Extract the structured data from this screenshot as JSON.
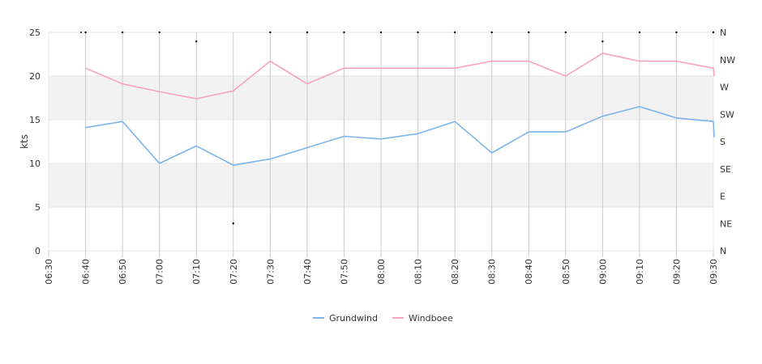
{
  "chart_data": {
    "type": "line",
    "title": "",
    "ylabel": "kts",
    "xlabel": "",
    "ylim": [
      0,
      25
    ],
    "y_ticks": [
      0,
      5,
      10,
      15,
      20,
      25
    ],
    "x_tick_labels": [
      "06:30",
      "06:40",
      "06:50",
      "07:00",
      "07:10",
      "07:20",
      "07:30",
      "07:40",
      "07:50",
      "08:00",
      "08:10",
      "08:20",
      "08:30",
      "08:40",
      "08:50",
      "09:00",
      "09:10",
      "09:20",
      "09:30"
    ],
    "right_axis_labels": [
      "N",
      "NE",
      "E",
      "SE",
      "S",
      "SW",
      "W",
      "NW",
      "N"
    ],
    "x": [
      "06:40",
      "06:50",
      "07:00",
      "07:10",
      "07:20",
      "07:30",
      "07:40",
      "07:50",
      "08:00",
      "08:10",
      "08:20",
      "08:30",
      "08:40",
      "08:50",
      "09:00",
      "09:10",
      "09:20",
      "09:30"
    ],
    "series": [
      {
        "name": "Grundwind",
        "color": "#7cb5ec",
        "values": [
          14.1,
          14.8,
          10.0,
          12.0,
          9.8,
          10.5,
          11.8,
          13.1,
          12.8,
          13.4,
          14.8,
          11.2,
          13.6,
          13.6,
          15.4,
          16.5,
          15.2,
          14.8
        ]
      },
      {
        "name": "Windboee",
        "color": "#f7a1c4",
        "values": [
          20.9,
          19.1,
          18.2,
          17.4,
          18.3,
          21.7,
          19.1,
          20.9,
          20.9,
          20.9,
          20.9,
          21.7,
          21.7,
          20.0,
          22.6,
          21.7,
          21.7,
          20.9
        ]
      }
    ],
    "direction_series": {
      "name": "direction",
      "values": [
        "N",
        "N",
        "N",
        "NNW",
        "NE",
        "N",
        "N",
        "N",
        "N",
        "N",
        "N",
        "N",
        "N",
        "N",
        "NNW",
        "N",
        "N",
        "N"
      ]
    },
    "grid": true,
    "legend_position": "bottom"
  }
}
